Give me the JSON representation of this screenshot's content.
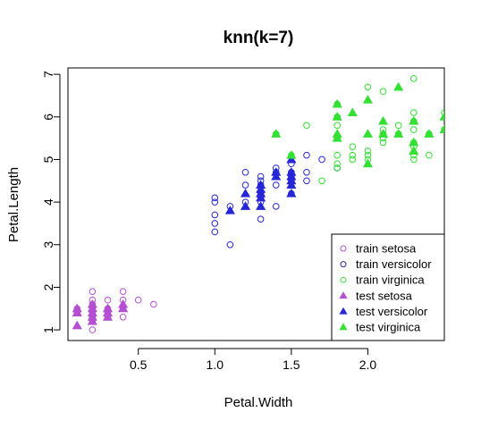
{
  "chart_data": {
    "type": "scatter",
    "title": "knn(k=7)",
    "xlabel": "Petal.Width",
    "ylabel": "Petal.Length",
    "xlim": [
      0.04,
      2.5
    ],
    "ylim": [
      0.75,
      7.15
    ],
    "x_ticks": [
      0.5,
      1.0,
      1.5,
      2.0
    ],
    "x_tick_labels": [
      "0.5",
      "1.0",
      "1.5",
      "2.0"
    ],
    "y_ticks": [
      1,
      2,
      3,
      4,
      5,
      6,
      7
    ],
    "y_tick_labels": [
      "1",
      "2",
      "3",
      "4",
      "5",
      "6",
      "7"
    ],
    "grid": false,
    "legend_position": "bottom-right",
    "series": [
      {
        "name": "train setosa",
        "color": "#b44fd1",
        "marker": "open-circle",
        "points": [
          [
            0.2,
            1.0
          ],
          [
            0.2,
            1.2
          ],
          [
            0.2,
            1.3
          ],
          [
            0.2,
            1.4
          ],
          [
            0.2,
            1.5
          ],
          [
            0.2,
            1.6
          ],
          [
            0.2,
            1.7
          ],
          [
            0.2,
            1.9
          ],
          [
            0.1,
            1.4
          ],
          [
            0.1,
            1.5
          ],
          [
            0.3,
            1.3
          ],
          [
            0.3,
            1.4
          ],
          [
            0.3,
            1.5
          ],
          [
            0.3,
            1.7
          ],
          [
            0.4,
            1.3
          ],
          [
            0.4,
            1.5
          ],
          [
            0.4,
            1.7
          ],
          [
            0.4,
            1.9
          ],
          [
            0.5,
            1.7
          ],
          [
            0.6,
            1.6
          ]
        ]
      },
      {
        "name": "train versicolor",
        "color": "#2626d4",
        "marker": "open-circle",
        "points": [
          [
            1.0,
            3.3
          ],
          [
            1.0,
            3.5
          ],
          [
            1.0,
            3.7
          ],
          [
            1.0,
            4.0
          ],
          [
            1.0,
            4.1
          ],
          [
            1.1,
            3.0
          ],
          [
            1.1,
            3.9
          ],
          [
            1.2,
            4.0
          ],
          [
            1.2,
            4.4
          ],
          [
            1.2,
            4.7
          ],
          [
            1.3,
            3.6
          ],
          [
            1.3,
            4.0
          ],
          [
            1.3,
            4.1
          ],
          [
            1.3,
            4.2
          ],
          [
            1.3,
            4.4
          ],
          [
            1.3,
            4.5
          ],
          [
            1.3,
            4.6
          ],
          [
            1.4,
            3.9
          ],
          [
            1.4,
            4.4
          ],
          [
            1.4,
            4.7
          ],
          [
            1.4,
            4.8
          ],
          [
            1.5,
            4.2
          ],
          [
            1.5,
            4.5
          ],
          [
            1.5,
            4.6
          ],
          [
            1.5,
            4.7
          ],
          [
            1.5,
            4.9
          ],
          [
            1.6,
            4.5
          ],
          [
            1.6,
            4.7
          ],
          [
            1.6,
            5.1
          ],
          [
            1.7,
            5.0
          ],
          [
            1.8,
            4.8
          ]
        ]
      },
      {
        "name": "train virginica",
        "color": "#33e033",
        "marker": "open-circle",
        "points": [
          [
            1.4,
            5.6
          ],
          [
            1.5,
            5.1
          ],
          [
            1.6,
            5.8
          ],
          [
            1.7,
            4.5
          ],
          [
            1.8,
            4.8
          ],
          [
            1.8,
            4.9
          ],
          [
            1.8,
            5.1
          ],
          [
            1.8,
            5.5
          ],
          [
            1.8,
            5.8
          ],
          [
            1.8,
            6.0
          ],
          [
            1.8,
            6.3
          ],
          [
            1.9,
            5.0
          ],
          [
            1.9,
            5.1
          ],
          [
            1.9,
            5.3
          ],
          [
            2.0,
            5.0
          ],
          [
            2.0,
            5.1
          ],
          [
            2.0,
            5.2
          ],
          [
            2.0,
            6.7
          ],
          [
            2.1,
            5.4
          ],
          [
            2.1,
            5.5
          ],
          [
            2.1,
            5.6
          ],
          [
            2.1,
            5.7
          ],
          [
            2.1,
            6.6
          ],
          [
            2.2,
            5.6
          ],
          [
            2.2,
            5.8
          ],
          [
            2.3,
            5.0
          ],
          [
            2.3,
            5.1
          ],
          [
            2.3,
            5.3
          ],
          [
            2.3,
            5.4
          ],
          [
            2.3,
            5.7
          ],
          [
            2.3,
            5.9
          ],
          [
            2.3,
            6.1
          ],
          [
            2.3,
            6.9
          ],
          [
            2.4,
            5.1
          ],
          [
            2.4,
            5.6
          ],
          [
            2.5,
            5.7
          ],
          [
            2.5,
            6.1
          ]
        ]
      },
      {
        "name": "test setosa",
        "color": "#b44fd1",
        "marker": "filled-triangle",
        "points": [
          [
            0.1,
            1.1
          ],
          [
            0.1,
            1.4
          ],
          [
            0.1,
            1.5
          ],
          [
            0.2,
            1.2
          ],
          [
            0.2,
            1.3
          ],
          [
            0.2,
            1.4
          ],
          [
            0.2,
            1.5
          ],
          [
            0.2,
            1.6
          ],
          [
            0.3,
            1.3
          ],
          [
            0.3,
            1.4
          ],
          [
            0.3,
            1.5
          ],
          [
            0.4,
            1.5
          ],
          [
            0.4,
            1.6
          ]
        ]
      },
      {
        "name": "test versicolor",
        "color": "#2626d4",
        "marker": "filled-triangle",
        "points": [
          [
            1.1,
            3.8
          ],
          [
            1.2,
            3.9
          ],
          [
            1.2,
            4.2
          ],
          [
            1.3,
            3.9
          ],
          [
            1.3,
            4.1
          ],
          [
            1.3,
            4.2
          ],
          [
            1.3,
            4.3
          ],
          [
            1.3,
            4.4
          ],
          [
            1.4,
            4.6
          ],
          [
            1.4,
            4.7
          ],
          [
            1.5,
            4.2
          ],
          [
            1.5,
            4.4
          ],
          [
            1.5,
            4.5
          ],
          [
            1.5,
            4.6
          ],
          [
            1.5,
            4.7
          ],
          [
            1.5,
            5.0
          ]
        ]
      },
      {
        "name": "test virginica",
        "color": "#33e033",
        "marker": "filled-triangle",
        "points": [
          [
            1.4,
            5.6
          ],
          [
            1.5,
            5.1
          ],
          [
            1.8,
            5.5
          ],
          [
            1.8,
            5.6
          ],
          [
            1.8,
            6.0
          ],
          [
            1.8,
            6.3
          ],
          [
            1.9,
            6.1
          ],
          [
            2.0,
            4.9
          ],
          [
            2.0,
            5.6
          ],
          [
            2.0,
            6.4
          ],
          [
            2.1,
            5.6
          ],
          [
            2.1,
            5.9
          ],
          [
            2.2,
            5.6
          ],
          [
            2.2,
            6.7
          ],
          [
            2.3,
            5.2
          ],
          [
            2.3,
            5.4
          ],
          [
            2.3,
            5.9
          ],
          [
            2.4,
            5.6
          ],
          [
            2.5,
            5.7
          ],
          [
            2.5,
            6.0
          ]
        ]
      }
    ]
  }
}
